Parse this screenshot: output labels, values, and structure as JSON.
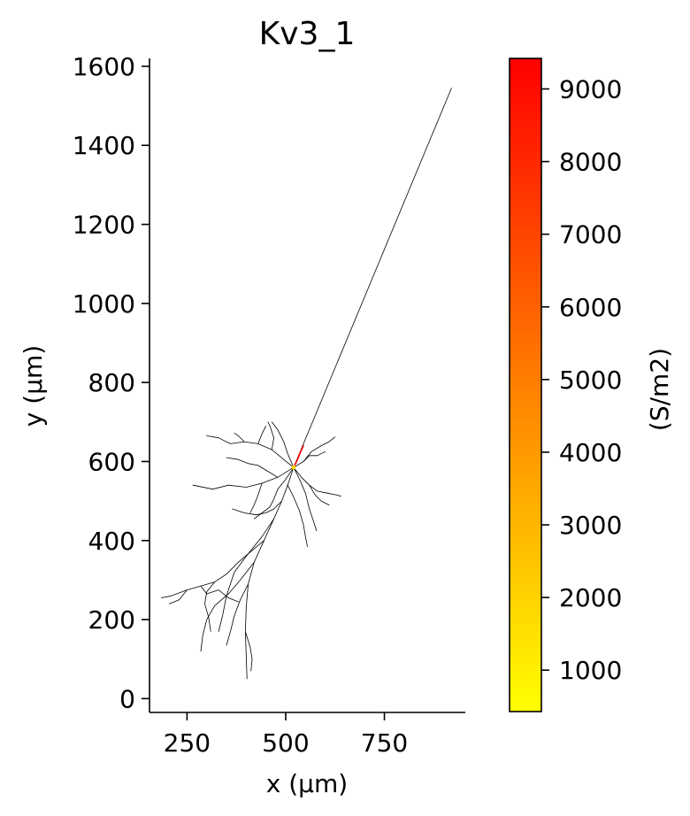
{
  "chart_data": {
    "type": "morphology-colormap",
    "title": "Kv3_1",
    "xlabel": "x (μm)",
    "ylabel": "y (μm)",
    "xlim": [
      155,
      955
    ],
    "ylim": [
      -35,
      1620
    ],
    "xticks": [
      250,
      500,
      750
    ],
    "yticks": [
      0,
      200,
      400,
      600,
      800,
      1000,
      1200,
      1400,
      1600
    ],
    "grid": false,
    "colorbar": {
      "label": "(S/m2)",
      "cmap": "autumn_r",
      "range": [
        430,
        9420
      ],
      "ticks": [
        1000,
        2000,
        3000,
        4000,
        5000,
        6000,
        7000,
        8000,
        9000
      ],
      "color_low": "#ffff00",
      "color_high": "#ff0000"
    },
    "soma": {
      "x": 520,
      "y": 585
    },
    "segments": [
      {
        "name": "axon",
        "value": 430,
        "points": [
          [
            520,
            585
          ],
          [
            920,
            1545
          ]
        ]
      },
      {
        "name": "axon-initial-segment",
        "value": 9400,
        "points": [
          [
            520,
            585
          ],
          [
            530,
            605
          ],
          [
            538,
            625
          ],
          [
            545,
            640
          ]
        ]
      },
      {
        "name": "apical-trunk",
        "value": 430,
        "points": [
          [
            520,
            585
          ],
          [
            505,
            540
          ],
          [
            490,
            500
          ],
          [
            470,
            455
          ],
          [
            445,
            400
          ],
          [
            420,
            345
          ],
          [
            405,
            290
          ],
          [
            400,
            230
          ],
          [
            398,
            170
          ],
          [
            400,
            110
          ],
          [
            402,
            50
          ]
        ]
      },
      {
        "name": "apical-branch-1",
        "value": 430,
        "points": [
          [
            445,
            400
          ],
          [
            415,
            375
          ],
          [
            380,
            345
          ],
          [
            350,
            315
          ],
          [
            320,
            295
          ],
          [
            285,
            285
          ],
          [
            250,
            275
          ],
          [
            210,
            260
          ],
          [
            185,
            255
          ]
        ]
      },
      {
        "name": "apical-branch-2",
        "value": 430,
        "points": [
          [
            470,
            455
          ],
          [
            440,
            410
          ],
          [
            400,
            360
          ],
          [
            370,
            320
          ],
          [
            350,
            260
          ],
          [
            340,
            210
          ],
          [
            330,
            170
          ]
        ]
      },
      {
        "name": "apical-branch-3",
        "value": 430,
        "points": [
          [
            420,
            345
          ],
          [
            385,
            300
          ],
          [
            355,
            265
          ],
          [
            320,
            235
          ],
          [
            300,
            200
          ],
          [
            290,
            160
          ],
          [
            285,
            120
          ]
        ]
      },
      {
        "name": "apical-branch-4",
        "value": 430,
        "points": [
          [
            320,
            295
          ],
          [
            300,
            270
          ],
          [
            295,
            240
          ],
          [
            305,
            205
          ],
          [
            310,
            170
          ]
        ]
      },
      {
        "name": "apical-branch-5",
        "value": 430,
        "points": [
          [
            405,
            290
          ],
          [
            385,
            250
          ],
          [
            370,
            210
          ],
          [
            360,
            170
          ],
          [
            350,
            135
          ]
        ]
      },
      {
        "name": "apical-branch-6",
        "value": 430,
        "points": [
          [
            250,
            275
          ],
          [
            230,
            250
          ],
          [
            205,
            240
          ]
        ]
      },
      {
        "name": "apical-branch-7",
        "value": 430,
        "points": [
          [
            398,
            170
          ],
          [
            410,
            130
          ],
          [
            415,
            100
          ],
          [
            412,
            70
          ]
        ]
      },
      {
        "name": "apical-branch-8",
        "value": 430,
        "points": [
          [
            285,
            285
          ],
          [
            300,
            265
          ],
          [
            330,
            275
          ],
          [
            355,
            255
          ],
          [
            380,
            245
          ]
        ]
      },
      {
        "name": "basal-1",
        "value": 430,
        "points": [
          [
            520,
            585
          ],
          [
            480,
            560
          ],
          [
            440,
            545
          ],
          [
            400,
            535
          ],
          [
            355,
            540
          ],
          [
            315,
            530
          ],
          [
            265,
            540
          ]
        ]
      },
      {
        "name": "basal-2",
        "value": 430,
        "points": [
          [
            520,
            585
          ],
          [
            495,
            605
          ],
          [
            465,
            630
          ],
          [
            430,
            645
          ],
          [
            395,
            650
          ],
          [
            360,
            645
          ],
          [
            330,
            660
          ],
          [
            300,
            665
          ]
        ]
      },
      {
        "name": "basal-3",
        "value": 430,
        "points": [
          [
            520,
            585
          ],
          [
            505,
            620
          ],
          [
            495,
            650
          ],
          [
            480,
            680
          ],
          [
            465,
            700
          ]
        ]
      },
      {
        "name": "basal-4",
        "value": 430,
        "points": [
          [
            520,
            585
          ],
          [
            540,
            560
          ],
          [
            560,
            540
          ],
          [
            580,
            525
          ],
          [
            605,
            520
          ],
          [
            630,
            515
          ],
          [
            640,
            512
          ]
        ]
      },
      {
        "name": "basal-5",
        "value": 430,
        "points": [
          [
            520,
            585
          ],
          [
            545,
            600
          ],
          [
            565,
            625
          ],
          [
            590,
            640
          ],
          [
            610,
            650
          ],
          [
            625,
            662
          ]
        ]
      },
      {
        "name": "basal-6",
        "value": 430,
        "points": [
          [
            520,
            585
          ],
          [
            535,
            555
          ],
          [
            550,
            520
          ],
          [
            560,
            480
          ],
          [
            570,
            450
          ],
          [
            578,
            425
          ]
        ]
      },
      {
        "name": "basal-7",
        "value": 430,
        "points": [
          [
            520,
            585
          ],
          [
            500,
            555
          ],
          [
            480,
            530
          ],
          [
            470,
            505
          ],
          [
            460,
            485
          ],
          [
            440,
            470
          ],
          [
            420,
            455
          ]
        ]
      },
      {
        "name": "basal-8",
        "value": 430,
        "points": [
          [
            505,
            540
          ],
          [
            520,
            510
          ],
          [
            535,
            475
          ],
          [
            545,
            440
          ],
          [
            550,
            410
          ],
          [
            555,
            385
          ]
        ]
      },
      {
        "name": "basal-9",
        "value": 430,
        "points": [
          [
            480,
            560
          ],
          [
            455,
            575
          ],
          [
            430,
            590
          ],
          [
            405,
            595
          ],
          [
            380,
            605
          ],
          [
            350,
            610
          ]
        ]
      },
      {
        "name": "basal-10",
        "value": 430,
        "points": [
          [
            490,
            500
          ],
          [
            470,
            480
          ],
          [
            450,
            470
          ],
          [
            425,
            465
          ],
          [
            395,
            470
          ],
          [
            365,
            480
          ]
        ]
      },
      {
        "name": "basal-11",
        "value": 430,
        "points": [
          [
            440,
            545
          ],
          [
            430,
            515
          ],
          [
            420,
            490
          ],
          [
            410,
            470
          ]
        ]
      },
      {
        "name": "basal-12",
        "value": 430,
        "points": [
          [
            465,
            630
          ],
          [
            470,
            660
          ],
          [
            460,
            690
          ],
          [
            455,
            700
          ]
        ]
      },
      {
        "name": "basal-13",
        "value": 430,
        "points": [
          [
            560,
            540
          ],
          [
            575,
            515
          ],
          [
            590,
            500
          ],
          [
            610,
            490
          ]
        ]
      },
      {
        "name": "basal-14",
        "value": 430,
        "points": [
          [
            545,
            600
          ],
          [
            560,
            615
          ],
          [
            580,
            615
          ],
          [
            600,
            625
          ]
        ]
      },
      {
        "name": "basal-15",
        "value": 430,
        "points": [
          [
            430,
            645
          ],
          [
            440,
            670
          ],
          [
            450,
            690
          ]
        ]
      },
      {
        "name": "basal-16",
        "value": 430,
        "points": [
          [
            395,
            650
          ],
          [
            380,
            665
          ],
          [
            370,
            672
          ]
        ]
      }
    ]
  }
}
